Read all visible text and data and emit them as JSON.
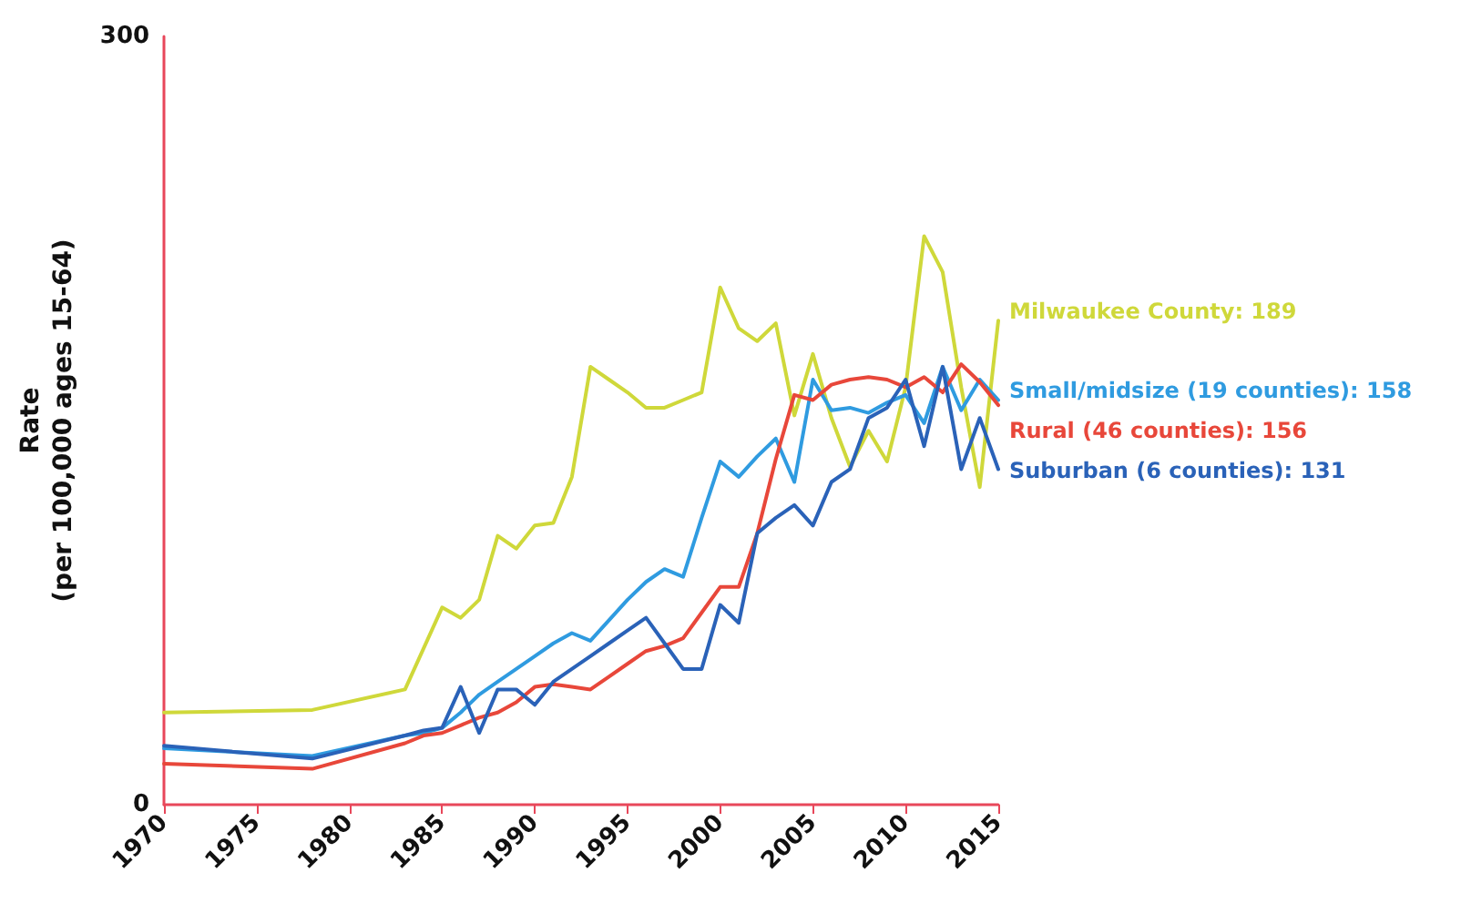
{
  "chart_data": {
    "type": "line",
    "ylabel": "Rate\n(per 100,000 ages 15-64)",
    "x": [
      1970,
      1978,
      1983,
      1984,
      1985,
      1986,
      1987,
      1988,
      1989,
      1990,
      1991,
      1992,
      1993,
      1994,
      1995,
      1996,
      1997,
      1998,
      1999,
      2000,
      2001,
      2002,
      2003,
      2004,
      2005,
      2006,
      2007,
      2008,
      2009,
      2010,
      2011,
      2012,
      2013,
      2014,
      2015
    ],
    "xlim": [
      1970,
      2015
    ],
    "xticks": [
      1970,
      1975,
      1980,
      1985,
      1990,
      1995,
      2000,
      2005,
      2010,
      2015
    ],
    "ylim": [
      0,
      300
    ],
    "yticks": [
      0,
      300
    ],
    "series": [
      {
        "name": "Milwaukee County:",
        "color": "#cfd83a",
        "values": [
          36,
          37,
          45,
          61,
          77,
          73,
          80,
          105,
          100,
          109,
          110,
          128,
          171,
          166,
          161,
          155,
          155,
          158,
          161,
          202,
          186,
          181,
          188,
          152,
          176,
          151,
          132,
          146,
          134,
          163,
          222,
          208,
          163,
          124,
          189
        ],
        "value_labels": [
          null,
          null,
          null,
          null,
          null,
          null,
          null,
          null,
          null,
          null,
          null,
          null,
          null,
          null,
          null,
          null,
          null,
          null,
          null,
          null,
          null,
          null,
          null,
          null,
          null,
          null,
          null,
          null,
          null,
          null,
          null,
          null,
          null,
          null,
          "189"
        ]
      },
      {
        "name": "Small/midsize (19 counties):",
        "color": "#2f9be0",
        "values": [
          22,
          19,
          27,
          28,
          30,
          36,
          43,
          48,
          53,
          58,
          63,
          67,
          64,
          72,
          80,
          87,
          92,
          89,
          112,
          134,
          128,
          136,
          143,
          126,
          166,
          154,
          155,
          153,
          157,
          160,
          149,
          171,
          154,
          166,
          158
        ],
        "value_labels": [
          null,
          null,
          null,
          null,
          null,
          null,
          null,
          null,
          null,
          null,
          null,
          null,
          null,
          null,
          null,
          null,
          null,
          null,
          null,
          null,
          null,
          null,
          null,
          null,
          null,
          null,
          null,
          null,
          null,
          null,
          null,
          null,
          null,
          null,
          "158"
        ]
      },
      {
        "name": "Rural (46 counties):",
        "color": "#e8473a",
        "values": [
          16,
          14,
          24,
          27,
          28,
          31,
          34,
          36,
          40,
          46,
          47,
          46,
          45,
          50,
          55,
          60,
          62,
          65,
          75,
          85,
          85,
          106,
          135,
          160,
          158,
          164,
          166,
          167,
          166,
          163,
          167,
          161,
          172,
          165,
          156
        ],
        "value_labels": [
          null,
          null,
          null,
          null,
          null,
          null,
          null,
          null,
          null,
          null,
          null,
          null,
          null,
          null,
          null,
          null,
          null,
          null,
          null,
          null,
          null,
          null,
          null,
          null,
          null,
          null,
          null,
          null,
          null,
          null,
          null,
          null,
          null,
          null,
          "156"
        ]
      },
      {
        "name": "Suburban (6 counties):",
        "color": "#2a62b8",
        "values": [
          23,
          18,
          27,
          29,
          30,
          46,
          28,
          45,
          45,
          39,
          48,
          53,
          58,
          63,
          68,
          73,
          63,
          53,
          53,
          78,
          71,
          106,
          112,
          117,
          109,
          126,
          131,
          151,
          155,
          166,
          140,
          171,
          131,
          151,
          131
        ],
        "value_labels": [
          null,
          null,
          null,
          null,
          null,
          null,
          null,
          null,
          null,
          null,
          null,
          null,
          null,
          null,
          null,
          null,
          null,
          null,
          null,
          null,
          null,
          null,
          null,
          null,
          null,
          null,
          null,
          null,
          null,
          null,
          null,
          null,
          null,
          null,
          "131"
        ]
      }
    ],
    "marker": "none",
    "line_style": "solid"
  }
}
